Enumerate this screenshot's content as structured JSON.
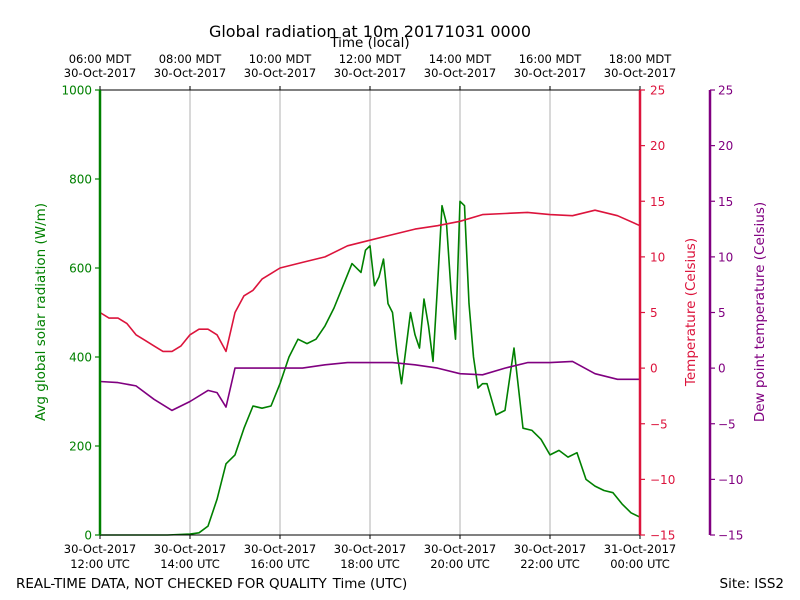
{
  "chart_data": {
    "type": "line",
    "title": "Global radiation at 10m 20171031 0000",
    "top_axis_label": "Time (local)",
    "bottom_axis_label": "Time (UTC)",
    "footer_left": "REAL-TIME DATA, NOT CHECKED FOR QUALITY",
    "footer_right": "Site: ISS2",
    "x_range_hours_utc": [
      12,
      24
    ],
    "top_ticks": [
      {
        "hour": 12,
        "line1": "06:00 MDT",
        "line2": "30-Oct-2017"
      },
      {
        "hour": 14,
        "line1": "08:00 MDT",
        "line2": "30-Oct-2017"
      },
      {
        "hour": 16,
        "line1": "10:00 MDT",
        "line2": "30-Oct-2017"
      },
      {
        "hour": 18,
        "line1": "12:00 MDT",
        "line2": "30-Oct-2017"
      },
      {
        "hour": 20,
        "line1": "14:00 MDT",
        "line2": "30-Oct-2017"
      },
      {
        "hour": 22,
        "line1": "16:00 MDT",
        "line2": "30-Oct-2017"
      },
      {
        "hour": 24,
        "line1": "18:00 MDT",
        "line2": "30-Oct-2017"
      }
    ],
    "bottom_ticks": [
      {
        "hour": 12,
        "line1": "30-Oct-2017",
        "line2": "12:00 UTC"
      },
      {
        "hour": 14,
        "line1": "30-Oct-2017",
        "line2": "14:00 UTC"
      },
      {
        "hour": 16,
        "line1": "30-Oct-2017",
        "line2": "16:00 UTC"
      },
      {
        "hour": 18,
        "line1": "30-Oct-2017",
        "line2": "18:00 UTC"
      },
      {
        "hour": 20,
        "line1": "30-Oct-2017",
        "line2": "20:00 UTC"
      },
      {
        "hour": 22,
        "line1": "30-Oct-2017",
        "line2": "22:00 UTC"
      },
      {
        "hour": 24,
        "line1": "31-Oct-2017",
        "line2": "00:00 UTC"
      }
    ],
    "axes": {
      "radiation": {
        "label": "Avg global solar radiation (W/m)",
        "range": [
          0,
          1000
        ],
        "ticks": [
          0,
          200,
          400,
          600,
          800,
          1000
        ],
        "tick_labels": [
          "0",
          "200",
          "400",
          "600",
          "800",
          "1000"
        ],
        "color": "#008000"
      },
      "temperature": {
        "label": "Temperature (Celsius)",
        "range": [
          -15,
          25
        ],
        "ticks": [
          -15,
          -10,
          -5,
          0,
          5,
          10,
          15,
          20,
          25
        ],
        "tick_labels": [
          "−15",
          "−10",
          "−5",
          "0",
          "5",
          "10",
          "15",
          "20",
          "25"
        ],
        "color": "#dc143c"
      },
      "dewpoint": {
        "label": "Dew point temperature (Celsius)",
        "range": [
          -15,
          25
        ],
        "ticks": [
          -15,
          -10,
          -5,
          0,
          5,
          10,
          15,
          20,
          25
        ],
        "tick_labels": [
          "−15",
          "−10",
          "−5",
          "0",
          "5",
          "10",
          "15",
          "20",
          "25"
        ],
        "color": "#800080"
      }
    },
    "series": [
      {
        "name": "Avg global solar radiation",
        "axis": "radiation",
        "color": "#008000",
        "x": [
          12.0,
          13.5,
          14.0,
          14.2,
          14.4,
          14.6,
          14.8,
          15.0,
          15.2,
          15.4,
          15.6,
          15.8,
          16.0,
          16.2,
          16.4,
          16.6,
          16.8,
          17.0,
          17.2,
          17.4,
          17.6,
          17.8,
          17.9,
          18.0,
          18.1,
          18.2,
          18.3,
          18.4,
          18.5,
          18.6,
          18.7,
          18.8,
          18.9,
          19.0,
          19.1,
          19.2,
          19.3,
          19.4,
          19.5,
          19.6,
          19.7,
          19.8,
          19.9,
          20.0,
          20.1,
          20.2,
          20.3,
          20.4,
          20.5,
          20.6,
          20.8,
          21.0,
          21.2,
          21.4,
          21.6,
          21.8,
          22.0,
          22.2,
          22.4,
          22.6,
          22.8,
          23.0,
          23.2,
          23.4,
          23.6,
          23.8,
          24.0
        ],
        "y": [
          0,
          0,
          2,
          5,
          20,
          80,
          160,
          180,
          240,
          290,
          285,
          290,
          340,
          400,
          440,
          430,
          440,
          470,
          510,
          560,
          610,
          590,
          640,
          650,
          560,
          580,
          620,
          520,
          500,
          410,
          340,
          420,
          500,
          450,
          420,
          530,
          470,
          390,
          560,
          740,
          700,
          550,
          440,
          750,
          740,
          520,
          400,
          330,
          340,
          340,
          270,
          280,
          420,
          240,
          235,
          215,
          180,
          190,
          175,
          185,
          125,
          110,
          100,
          95,
          70,
          50,
          40
        ]
      },
      {
        "name": "Temperature",
        "axis": "temperature",
        "color": "#dc143c",
        "x": [
          12.0,
          12.2,
          12.4,
          12.6,
          12.8,
          13.0,
          13.2,
          13.4,
          13.6,
          13.8,
          14.0,
          14.2,
          14.4,
          14.6,
          14.8,
          15.0,
          15.2,
          15.4,
          15.6,
          15.8,
          16.0,
          16.5,
          17.0,
          17.5,
          18.0,
          18.5,
          19.0,
          19.5,
          20.0,
          20.5,
          21.0,
          21.5,
          22.0,
          22.5,
          23.0,
          23.5,
          24.0
        ],
        "y": [
          5.0,
          4.5,
          4.5,
          4.0,
          3.0,
          2.5,
          2.0,
          1.5,
          1.5,
          2.0,
          3.0,
          3.5,
          3.5,
          3.0,
          1.5,
          5.0,
          6.5,
          7.0,
          8.0,
          8.5,
          9.0,
          9.5,
          10.0,
          11.0,
          11.5,
          12.0,
          12.5,
          12.8,
          13.2,
          13.8,
          13.9,
          14.0,
          13.8,
          13.7,
          14.2,
          13.7,
          12.8
        ]
      },
      {
        "name": "Dew point temperature",
        "axis": "dewpoint",
        "color": "#800080",
        "x": [
          12.0,
          12.4,
          12.8,
          13.2,
          13.6,
          14.0,
          14.4,
          14.6,
          14.8,
          15.0,
          15.5,
          16.0,
          16.5,
          17.0,
          17.5,
          18.0,
          18.5,
          19.0,
          19.5,
          20.0,
          20.5,
          21.0,
          21.5,
          22.0,
          22.5,
          23.0,
          23.5,
          24.0
        ],
        "y": [
          -1.2,
          -1.3,
          -1.6,
          -2.8,
          -3.8,
          -3.0,
          -2.0,
          -2.2,
          -3.5,
          0.0,
          0.0,
          0.0,
          0.0,
          0.3,
          0.5,
          0.5,
          0.5,
          0.3,
          0.0,
          -0.5,
          -0.6,
          0.0,
          0.5,
          0.5,
          0.6,
          -0.5,
          -1.0,
          -1.0
        ]
      }
    ]
  }
}
